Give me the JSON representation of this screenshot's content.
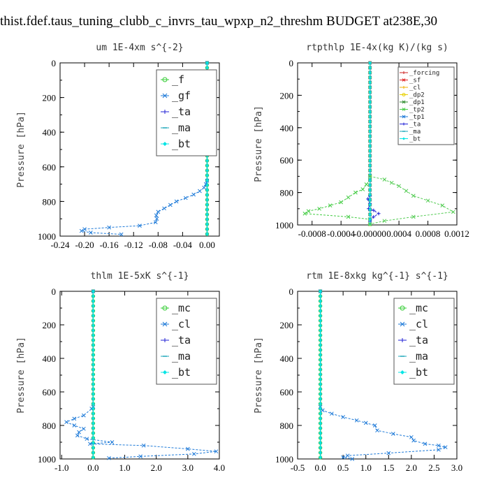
{
  "title": "thist.fdef.taus_tuning_clubb_c_invrs_tau_wpxp_n2_threshm  BUDGET at238E,30",
  "chart_data": [
    {
      "type": "line",
      "title": "um  1E-4xm s^{-2}",
      "ylabel": "Pressure [hPa]",
      "xlim": [
        -0.24,
        0.02
      ],
      "ylim": [
        1000,
        0
      ],
      "xticks": [
        -0.24,
        -0.2,
        -0.16,
        -0.12,
        -0.08,
        -0.04,
        0.0
      ],
      "xtick_labels": [
        "-0.24",
        "-0.20",
        "-0.16",
        "-0.12",
        "-0.08",
        "-0.04",
        "0.00"
      ],
      "yticks": [
        0,
        200,
        400,
        600,
        800,
        1000
      ],
      "ytick_labels": [
        "0",
        "200",
        "400",
        "600",
        "800",
        "1000"
      ],
      "legend": "top-right",
      "legend_size": "large",
      "series": [
        {
          "name": "_f",
          "color": "#33cc33",
          "marker": "o",
          "x": [
            0,
            0
          ],
          "y": [
            0,
            1000
          ]
        },
        {
          "name": "_gf",
          "color": "#1e7ad8",
          "marker": "x",
          "x": [
            0,
            0,
            -0.002,
            -0.005,
            -0.012,
            -0.022,
            -0.035,
            -0.05,
            -0.06,
            -0.07,
            -0.08,
            -0.083,
            -0.082,
            -0.084,
            -0.11,
            -0.16,
            -0.2,
            -0.205,
            -0.19,
            -0.14
          ],
          "y": [
            0,
            680,
            700,
            720,
            740,
            760,
            780,
            800,
            820,
            840,
            860,
            880,
            900,
            920,
            940,
            950,
            960,
            970,
            980,
            990
          ]
        },
        {
          "name": "_ta",
          "color": "#1f1fd6",
          "marker": "+",
          "x": [
            0,
            0
          ],
          "y": [
            0,
            1000
          ]
        },
        {
          "name": "_ma",
          "color": "#1aa6b8",
          "marker": "-",
          "x": [
            0,
            0
          ],
          "y": [
            0,
            1000
          ]
        },
        {
          "name": "_bt",
          "color": "#00e5e5",
          "marker": "d",
          "x": [
            0,
            0
          ],
          "y": [
            0,
            1000
          ]
        }
      ]
    },
    {
      "type": "line",
      "title": "rtpthlp  1E-4x(kg K)/(kg s)",
      "ylabel": "Pressure [hPa]",
      "xlim": [
        -0.001,
        0.0012
      ],
      "ylim": [
        1000,
        0
      ],
      "xticks": [
        -0.0008,
        -0.0004,
        0.0,
        0.0004,
        0.0008,
        0.0012
      ],
      "xtick_labels": [
        "-0.0008",
        "-0.0004",
        "-0.00000",
        "0.0004",
        "0.0008",
        "0.0012"
      ],
      "yticks": [
        0,
        200,
        400,
        600,
        800,
        1000
      ],
      "ytick_labels": [
        "0",
        "200",
        "400",
        "600",
        "800",
        "1000"
      ],
      "legend": "top-right",
      "legend_size": "small",
      "series": [
        {
          "name": "_forcing",
          "color": "#cc2222",
          "marker": "+",
          "x": [
            0,
            0
          ],
          "y": [
            0,
            1000
          ]
        },
        {
          "name": "_sf",
          "color": "#e02020",
          "marker": "x",
          "x": [
            0,
            0
          ],
          "y": [
            0,
            1000
          ]
        },
        {
          "name": "_cl",
          "color": "#f0b000",
          "marker": "+",
          "x": [
            0,
            0
          ],
          "y": [
            0,
            1000
          ]
        },
        {
          "name": "_dp2",
          "color": "#e8d000",
          "marker": "o",
          "x": [
            0,
            0
          ],
          "y": [
            0,
            1000
          ]
        },
        {
          "name": "_dp1",
          "color": "#2e8b2e",
          "marker": "x",
          "x": [
            0,
            0
          ],
          "y": [
            0,
            1000
          ]
        },
        {
          "name": "_tp2",
          "color": "#44cc44",
          "marker": "x",
          "x": [
            0,
            -5e-05,
            -0.0001,
            -0.0002,
            -0.0003,
            -0.0004,
            -0.00055,
            -0.0007,
            -0.00085,
            -0.0009,
            -0.0003,
            0
          ],
          "y": [
            720,
            750,
            780,
            800,
            830,
            860,
            880,
            900,
            915,
            930,
            950,
            965
          ]
        },
        {
          "name": "_tp1",
          "color": "#1e7ad8",
          "marker": "x",
          "x": [
            0,
            0
          ],
          "y": [
            0,
            1000
          ]
        },
        {
          "name": "_ta",
          "color": "#1f1fd6",
          "marker": "+",
          "x": [
            0,
            0,
            -3e-05,
            0,
            -2e-05,
            5e-05,
            0.00012,
            5e-05,
            0
          ],
          "y": [
            0,
            820,
            840,
            870,
            900,
            910,
            930,
            950,
            980
          ]
        },
        {
          "name": "_ma",
          "color": "#1aa6b8",
          "marker": "-",
          "x": [
            0,
            0
          ],
          "y": [
            0,
            1000
          ]
        },
        {
          "name": "_bt",
          "color": "#00e5e5",
          "marker": "d",
          "x": [
            0,
            0
          ],
          "y": [
            0,
            1000
          ]
        },
        {
          "name": "",
          "color": "#55cc55",
          "marker": "x",
          "x": [
            0,
            0.0002,
            0.0003,
            0.0004,
            0.0005,
            0.0006,
            0.0008,
            0.001,
            0.00115,
            0.0006,
            0.0002,
            0
          ],
          "y": [
            700,
            720,
            740,
            760,
            790,
            820,
            850,
            880,
            920,
            950,
            975,
            995
          ]
        }
      ]
    },
    {
      "type": "line",
      "title": "thlm  1E-5xK s^{-1}",
      "ylabel": "Pressure [hPa]",
      "xlim": [
        -1.05,
        4.0
      ],
      "ylim": [
        1000,
        0
      ],
      "xticks": [
        -1.0,
        0.0,
        1.0,
        2.0,
        3.0,
        4.0
      ],
      "xtick_labels": [
        "-1.0",
        "0.0",
        "1.0",
        "2.0",
        "3.0",
        "4.0"
      ],
      "yticks": [
        0,
        200,
        400,
        600,
        800,
        1000
      ],
      "ytick_labels": [
        "0",
        "200",
        "400",
        "600",
        "800",
        "1000"
      ],
      "legend": "top-right",
      "legend_size": "large",
      "series": [
        {
          "name": "_mc",
          "color": "#33cc33",
          "marker": "o",
          "x": [
            0,
            0
          ],
          "y": [
            0,
            1000
          ]
        },
        {
          "name": "_cl",
          "color": "#1e7ad8",
          "marker": "x",
          "x": [
            0,
            0,
            -0.05,
            -0.3,
            -0.6,
            -0.85,
            -0.6,
            -0.3,
            -0.45,
            -0.5,
            -0.2,
            0.6,
            -0.1,
            1.6,
            3.0,
            3.9,
            3.2,
            1.5,
            0.5
          ],
          "y": [
            0,
            690,
            700,
            740,
            760,
            780,
            800,
            820,
            840,
            860,
            880,
            900,
            910,
            920,
            940,
            955,
            970,
            985,
            995
          ]
        },
        {
          "name": "_ta",
          "color": "#1f1fd6",
          "marker": "+",
          "x": [
            0,
            0
          ],
          "y": [
            0,
            1000
          ]
        },
        {
          "name": "_ma",
          "color": "#1aa6b8",
          "marker": "-",
          "x": [
            0,
            0
          ],
          "y": [
            0,
            1000
          ]
        },
        {
          "name": "_bt",
          "color": "#00e5e5",
          "marker": "d",
          "x": [
            0,
            0
          ],
          "y": [
            0,
            1000
          ]
        }
      ]
    },
    {
      "type": "line",
      "title": "rtm  1E-8xkg kg^{-1} s^{-1}",
      "ylabel": "Pressure [hPa]",
      "xlim": [
        -0.5,
        3.0
      ],
      "ylim": [
        1000,
        0
      ],
      "xticks": [
        -0.5,
        0.0,
        0.5,
        1.0,
        1.5,
        2.0,
        2.5,
        3.0
      ],
      "xtick_labels": [
        "-0.5",
        "0.0",
        "0.5",
        "1.0",
        "1.5",
        "2.0",
        "2.5",
        "3.0"
      ],
      "yticks": [
        0,
        200,
        400,
        600,
        800,
        1000
      ],
      "ytick_labels": [
        "0",
        "200",
        "400",
        "600",
        "800",
        "1000"
      ],
      "legend": "top-right",
      "legend_size": "large",
      "series": [
        {
          "name": "_mc",
          "color": "#33cc33",
          "marker": "o",
          "x": [
            0,
            0
          ],
          "y": [
            0,
            1000
          ]
        },
        {
          "name": "_cl",
          "color": "#1e7ad8",
          "marker": "x",
          "x": [
            0,
            0,
            0.05,
            0.25,
            0.5,
            0.8,
            1.0,
            1.2,
            1.25,
            1.6,
            2.0,
            2.05,
            2.3,
            2.6,
            2.75,
            2.6,
            1.5,
            0.6,
            0.5,
            0.7
          ],
          "y": [
            0,
            690,
            710,
            730,
            750,
            770,
            785,
            800,
            830,
            850,
            870,
            890,
            910,
            920,
            930,
            945,
            965,
            980,
            990,
            1000
          ]
        },
        {
          "name": "_ta",
          "color": "#1f1fd6",
          "marker": "+",
          "x": [
            0,
            0
          ],
          "y": [
            0,
            1000
          ]
        },
        {
          "name": "_ma",
          "color": "#1aa6b8",
          "marker": "-",
          "x": [
            0,
            0
          ],
          "y": [
            0,
            1000
          ]
        },
        {
          "name": "_bt",
          "color": "#00e5e5",
          "marker": "d",
          "x": [
            0,
            0
          ],
          "y": [
            0,
            1000
          ]
        }
      ]
    }
  ]
}
